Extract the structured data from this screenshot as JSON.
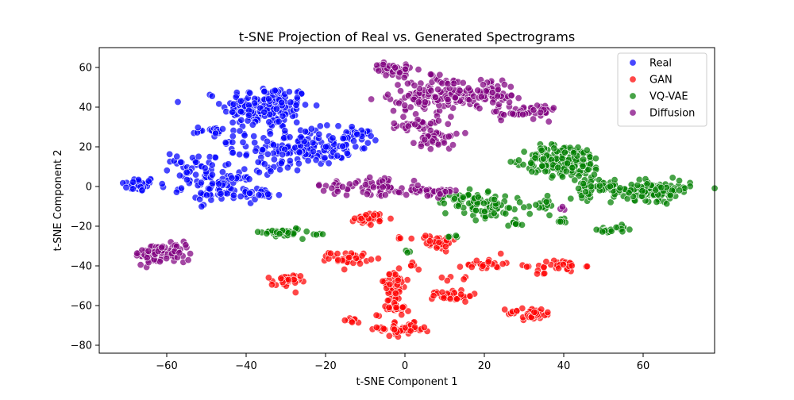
{
  "chart_data": {
    "type": "scatter",
    "title": "t-SNE Projection of Real vs. Generated Spectrograms",
    "xlabel": "t-SNE Component 1",
    "ylabel": "t-SNE Component 2",
    "xlim": [
      -77,
      78
    ],
    "ylim": [
      -84,
      70
    ],
    "xticks": [
      -60,
      -40,
      -20,
      0,
      20,
      40,
      60
    ],
    "yticks": [
      -80,
      -60,
      -40,
      -20,
      0,
      20,
      40,
      60
    ],
    "grid": false,
    "legend_position": "top-right",
    "series": [
      {
        "name": "Real",
        "color": "#0000ff",
        "clusters": [
          {
            "cx": -67,
            "cy": 1,
            "sx": 2.2,
            "sy": 1.8,
            "n": 40
          },
          {
            "cx": -35,
            "cy": 40,
            "sx": 5.5,
            "sy": 5.5,
            "n": 170
          },
          {
            "cx": -25,
            "cy": 20,
            "sx": 6,
            "sy": 4.5,
            "n": 150
          },
          {
            "cx": -13,
            "cy": 25,
            "sx": 3,
            "sy": 2,
            "n": 30
          },
          {
            "cx": -47,
            "cy": 0,
            "sx": 4.5,
            "sy": 4,
            "n": 90
          },
          {
            "cx": -37,
            "cy": -4,
            "sx": 3,
            "sy": 1.5,
            "n": 25
          },
          {
            "cx": -48,
            "cy": 28,
            "sx": 2.5,
            "sy": 1,
            "n": 20
          },
          {
            "cx": -52,
            "cy": 13,
            "sx": 4,
            "sy": 2,
            "n": 25
          },
          {
            "cx": -33,
            "cy": 10,
            "sx": 3,
            "sy": 3,
            "n": 15
          },
          {
            "cx": -57,
            "cy": 7,
            "sx": 2,
            "sy": 3,
            "n": 12
          },
          {
            "cx": -42,
            "cy": 22,
            "sx": 2,
            "sy": 3,
            "n": 12
          }
        ]
      },
      {
        "name": "GAN",
        "color": "#ff0000",
        "clusters": [
          {
            "cx": -9,
            "cy": -16,
            "sx": 1.8,
            "sy": 1.5,
            "n": 35
          },
          {
            "cx": -14,
            "cy": -36,
            "sx": 2.5,
            "sy": 1.5,
            "n": 35
          },
          {
            "cx": -30,
            "cy": -48,
            "sx": 1.8,
            "sy": 1.8,
            "n": 35
          },
          {
            "cx": -3,
            "cy": -50,
            "sx": 2,
            "sy": 4,
            "n": 40
          },
          {
            "cx": -3,
            "cy": -61,
            "sx": 2,
            "sy": 2,
            "n": 25
          },
          {
            "cx": 0,
            "cy": -72,
            "sx": 2.5,
            "sy": 1.5,
            "n": 35
          },
          {
            "cx": -6,
            "cy": -72,
            "sx": 1.5,
            "sy": 0.7,
            "n": 10
          },
          {
            "cx": -13,
            "cy": -67,
            "sx": 1,
            "sy": 1,
            "n": 8
          },
          {
            "cx": 8,
            "cy": -28,
            "sx": 2.5,
            "sy": 1.8,
            "n": 40
          },
          {
            "cx": 12,
            "cy": -55,
            "sx": 2.5,
            "sy": 1.5,
            "n": 35
          },
          {
            "cx": 20,
            "cy": -39,
            "sx": 2.5,
            "sy": 1.5,
            "n": 25
          },
          {
            "cx": 32,
            "cy": -64,
            "sx": 3,
            "sy": 1.5,
            "n": 40
          },
          {
            "cx": 39,
            "cy": -40,
            "sx": 3,
            "sy": 1.5,
            "n": 30
          },
          {
            "cx": 2,
            "cy": -40,
            "sx": 1,
            "sy": 1,
            "n": 5
          },
          {
            "cx": 14,
            "cy": -47,
            "sx": 2,
            "sy": 1,
            "n": 5
          },
          {
            "cx": 34,
            "cy": -44,
            "sx": 1,
            "sy": 0.5,
            "n": 3
          },
          {
            "cx": -2,
            "cy": -26,
            "sx": 0.7,
            "sy": 0.5,
            "n": 3
          }
        ]
      },
      {
        "name": "VQ-VAE",
        "color": "#008000",
        "clusters": [
          {
            "cx": 40,
            "cy": 13,
            "sx": 5,
            "sy": 4,
            "n": 170
          },
          {
            "cx": 62,
            "cy": -2,
            "sx": 5,
            "sy": 2.5,
            "n": 130
          },
          {
            "cx": 47,
            "cy": 0,
            "sx": 3,
            "sy": 2.5,
            "n": 45
          },
          {
            "cx": 20,
            "cy": -10,
            "sx": 5,
            "sy": 3,
            "n": 80
          },
          {
            "cx": 14,
            "cy": -5,
            "sx": 3,
            "sy": 2,
            "n": 20
          },
          {
            "cx": -31,
            "cy": -23,
            "sx": 2.5,
            "sy": 1.2,
            "n": 35
          },
          {
            "cx": 35,
            "cy": -10,
            "sx": 1.5,
            "sy": 2,
            "n": 15
          },
          {
            "cx": 50,
            "cy": -22,
            "sx": 0.8,
            "sy": 0.8,
            "n": 10
          },
          {
            "cx": 55,
            "cy": -21,
            "sx": 1,
            "sy": 0.8,
            "n": 10
          },
          {
            "cx": 40,
            "cy": -17,
            "sx": 0.8,
            "sy": 0.7,
            "n": 6
          },
          {
            "cx": 28,
            "cy": -18,
            "sx": 1,
            "sy": 1.2,
            "n": 8
          },
          {
            "cx": -23,
            "cy": -24,
            "sx": 0.8,
            "sy": 0.5,
            "n": 4
          },
          {
            "cx": 1,
            "cy": -33,
            "sx": 0.5,
            "sy": 0.5,
            "n": 3
          },
          {
            "cx": 12,
            "cy": -25,
            "sx": 0.8,
            "sy": 0.8,
            "n": 4
          }
        ]
      },
      {
        "name": "Diffusion",
        "color": "#800080",
        "clusters": [
          {
            "cx": -61,
            "cy": -34,
            "sx": 3.5,
            "sy": 2.5,
            "n": 90
          },
          {
            "cx": -3,
            "cy": 59,
            "sx": 2.5,
            "sy": 1.5,
            "n": 45
          },
          {
            "cx": 5,
            "cy": 45,
            "sx": 4.5,
            "sy": 4,
            "n": 90
          },
          {
            "cx": 12,
            "cy": 46,
            "sx": 3,
            "sy": 2,
            "n": 30
          },
          {
            "cx": 22,
            "cy": 47,
            "sx": 3,
            "sy": 4,
            "n": 60
          },
          {
            "cx": 33,
            "cy": 38,
            "sx": 2.5,
            "sy": 2,
            "n": 35
          },
          {
            "cx": 26,
            "cy": 36,
            "sx": 1.5,
            "sy": 1,
            "n": 12
          },
          {
            "cx": 3,
            "cy": 31,
            "sx": 3,
            "sy": 1.5,
            "n": 30
          },
          {
            "cx": 8,
            "cy": 24,
            "sx": 2.5,
            "sy": 2.5,
            "n": 40
          },
          {
            "cx": 10,
            "cy": 53,
            "sx": 2,
            "sy": 1,
            "n": 12
          },
          {
            "cx": -15,
            "cy": 0,
            "sx": 3.5,
            "sy": 1.5,
            "n": 25
          },
          {
            "cx": -5,
            "cy": 0,
            "sx": 3,
            "sy": 2.5,
            "n": 40
          },
          {
            "cx": 4,
            "cy": -2,
            "sx": 3,
            "sy": 1.5,
            "n": 20
          },
          {
            "cx": 10,
            "cy": -3,
            "sx": 2.5,
            "sy": 1,
            "n": 15
          },
          {
            "cx": 40,
            "cy": -11,
            "sx": 0.7,
            "sy": 0.5,
            "n": 3
          },
          {
            "cx": 6,
            "cy": 56,
            "sx": 1,
            "sy": 0.5,
            "n": 5
          }
        ]
      }
    ]
  }
}
